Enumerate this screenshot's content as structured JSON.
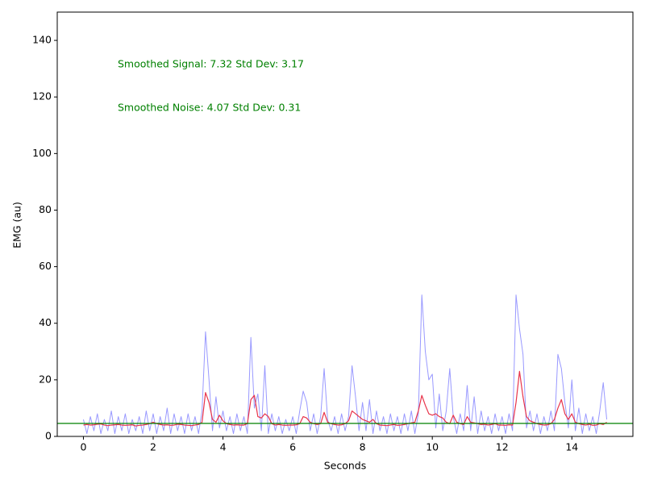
{
  "chart_data": {
    "type": "line",
    "xlabel": "Seconds",
    "ylabel": "EMG (au)",
    "annotations": [
      "Smoothed Signal: 7.32  Std Dev: 3.17",
      "Smoothed Noise: 4.07  Std Dev: 0.31"
    ],
    "annotation_color": "#008000",
    "xlim": [
      -0.75,
      15.75
    ],
    "ylim": [
      0,
      150
    ],
    "xticks": [
      0,
      2,
      4,
      6,
      8,
      10,
      12,
      14
    ],
    "yticks": [
      0,
      20,
      40,
      60,
      80,
      100,
      120,
      140
    ],
    "reference_line": {
      "value": 4.6,
      "color": "#008000"
    },
    "x": [
      0,
      0.1,
      0.2,
      0.3,
      0.4,
      0.5,
      0.6,
      0.7,
      0.8,
      0.9,
      1,
      1.1,
      1.2,
      1.3,
      1.4,
      1.5,
      1.6,
      1.7,
      1.8,
      1.9,
      2,
      2.1,
      2.2,
      2.3,
      2.4,
      2.5,
      2.6,
      2.7,
      2.8,
      2.9,
      3,
      3.1,
      3.2,
      3.3,
      3.4,
      3.5,
      3.6,
      3.7,
      3.8,
      3.9,
      4,
      4.1,
      4.2,
      4.3,
      4.4,
      4.5,
      4.6,
      4.7,
      4.8,
      4.9,
      5,
      5.1,
      5.2,
      5.3,
      5.4,
      5.5,
      5.6,
      5.7,
      5.8,
      5.9,
      6,
      6.1,
      6.2,
      6.3,
      6.4,
      6.5,
      6.6,
      6.7,
      6.8,
      6.9,
      7,
      7.1,
      7.2,
      7.3,
      7.4,
      7.5,
      7.6,
      7.7,
      7.8,
      7.9,
      8,
      8.1,
      8.2,
      8.3,
      8.4,
      8.5,
      8.6,
      8.7,
      8.8,
      8.9,
      9,
      9.1,
      9.2,
      9.3,
      9.4,
      9.5,
      9.6,
      9.7,
      9.8,
      9.9,
      10,
      10.1,
      10.2,
      10.3,
      10.4,
      10.5,
      10.6,
      10.7,
      10.8,
      10.9,
      11,
      11.1,
      11.2,
      11.3,
      11.4,
      11.5,
      11.6,
      11.7,
      11.8,
      11.9,
      12,
      12.1,
      12.2,
      12.3,
      12.4,
      12.5,
      12.6,
      12.7,
      12.8,
      12.9,
      13,
      13.1,
      13.2,
      13.3,
      13.4,
      13.5,
      13.6,
      13.7,
      13.8,
      13.9,
      14,
      14.1,
      14.2,
      14.3,
      14.4,
      14.5,
      14.6,
      14.7,
      14.8,
      14.9,
      15
    ],
    "series": [
      {
        "color": "#9999ff",
        "width": 1,
        "values": [
          6,
          1,
          7,
          2,
          8,
          1,
          6,
          2,
          9,
          1,
          7,
          2,
          8,
          1,
          6,
          2,
          7,
          1,
          9,
          2,
          8,
          1,
          7,
          2,
          10,
          1,
          8,
          2,
          7,
          1,
          8,
          2,
          7,
          1,
          9,
          37,
          20,
          2,
          14,
          3,
          9,
          2,
          7,
          1,
          8,
          2,
          7,
          1,
          35,
          10,
          15,
          2,
          25,
          1,
          8,
          2,
          7,
          1,
          6,
          2,
          7,
          1,
          9,
          16,
          12,
          2,
          8,
          1,
          7,
          24,
          6,
          2,
          7,
          1,
          8,
          2,
          7,
          25,
          14,
          2,
          12,
          2,
          13,
          1,
          9,
          2,
          7,
          1,
          8,
          2,
          7,
          1,
          8,
          2,
          9,
          1,
          8,
          50,
          30,
          20,
          22,
          3,
          15,
          2,
          9,
          24,
          7,
          1,
          8,
          2,
          18,
          2,
          14,
          1,
          9,
          2,
          7,
          1,
          8,
          2,
          7,
          1,
          8,
          2,
          50,
          38,
          29,
          3,
          9,
          2,
          8,
          1,
          7,
          2,
          9,
          2,
          29,
          24,
          12,
          3,
          20,
          2,
          10,
          1,
          8,
          2,
          7,
          1,
          9,
          19,
          6
        ]
      },
      {
        "color": "#e8334a",
        "width": 1.2,
        "values": [
          4,
          4.2,
          4,
          4.1,
          4.3,
          4.4,
          4,
          3.8,
          4,
          4.1,
          4.2,
          4,
          3.9,
          4,
          4.1,
          3.7,
          3.9,
          4,
          4.2,
          4.5,
          5,
          4.5,
          4.2,
          4,
          4.1,
          3.9,
          4,
          4.3,
          4.2,
          4,
          3.9,
          3.8,
          4,
          4.2,
          5,
          15.5,
          12,
          6,
          5,
          7.5,
          5.5,
          4.5,
          4.2,
          4,
          4.1,
          4,
          4,
          4.5,
          13,
          14.5,
          7,
          6.5,
          8,
          7,
          4.5,
          4,
          4.2,
          4,
          3.9,
          4,
          4,
          4.1,
          4.5,
          7,
          6.5,
          5,
          4.5,
          4.2,
          4.5,
          8.5,
          5,
          4.5,
          4.2,
          4,
          4.1,
          4.5,
          5.5,
          9,
          8,
          7,
          6,
          5.5,
          5,
          6,
          4.5,
          4,
          3.9,
          3.8,
          4,
          4.2,
          3.9,
          4,
          4.2,
          4.5,
          4.8,
          5,
          9,
          14.5,
          11,
          8,
          7.5,
          8,
          7,
          6.5,
          5,
          4.5,
          7.5,
          5,
          4.5,
          4.2,
          7,
          5,
          4.8,
          4.5,
          4.2,
          4.3,
          4,
          4.2,
          4.5,
          4,
          4,
          3.9,
          4.1,
          4,
          12,
          23,
          14,
          7,
          5.5,
          5,
          4.5,
          4.2,
          4,
          4.1,
          4.5,
          6,
          10,
          13,
          8,
          6,
          8,
          5,
          4.5,
          4.2,
          4,
          4.3,
          3.9,
          4,
          4.5,
          4.2,
          5
        ]
      }
    ]
  }
}
